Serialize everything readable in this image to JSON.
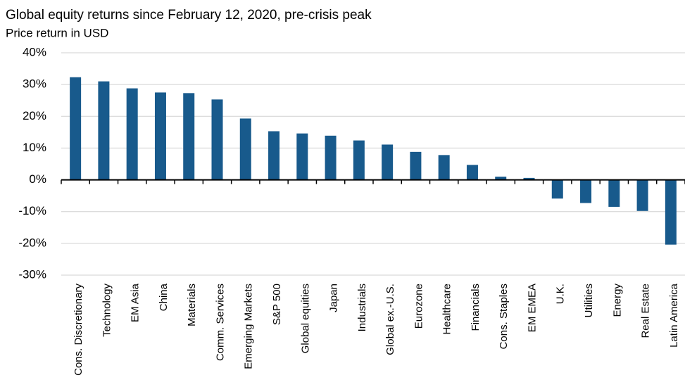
{
  "chart_data": {
    "type": "bar",
    "title": "Global equity returns since February 12, 2020, pre-crisis peak",
    "subtitle": "Price return in USD",
    "categories": [
      "Cons. Discretionary",
      "Technology",
      "EM Asia",
      "China",
      "Materials",
      "Comm. Services",
      "Emerging Markets",
      "S&P 500",
      "Global equities",
      "Japan",
      "Industrials",
      "Global ex.-U.S.",
      "Eurozone",
      "Healthcare",
      "Financials",
      "Cons. Staples",
      "EM EMEA",
      "U.K.",
      "Utilities",
      "Energy",
      "Real Estate",
      "Latin America"
    ],
    "values": [
      32.3,
      31.0,
      28.8,
      27.5,
      27.3,
      25.3,
      19.3,
      15.3,
      14.6,
      13.9,
      12.4,
      11.1,
      8.8,
      7.8,
      4.7,
      1.0,
      0.6,
      -5.9,
      -7.3,
      -8.5,
      -9.8,
      -20.4
    ],
    "color": "#185a8c",
    "ylim": [
      -30,
      40
    ],
    "yticks": [
      {
        "value": -30,
        "label": "-30%"
      },
      {
        "value": -20,
        "label": "-20%"
      },
      {
        "value": -10,
        "label": "-10%"
      },
      {
        "value": 0,
        "label": "0%"
      },
      {
        "value": 10,
        "label": "10%"
      },
      {
        "value": 20,
        "label": "20%"
      },
      {
        "value": 30,
        "label": "30%"
      },
      {
        "value": 40,
        "label": "40%"
      }
    ],
    "grid": true
  }
}
